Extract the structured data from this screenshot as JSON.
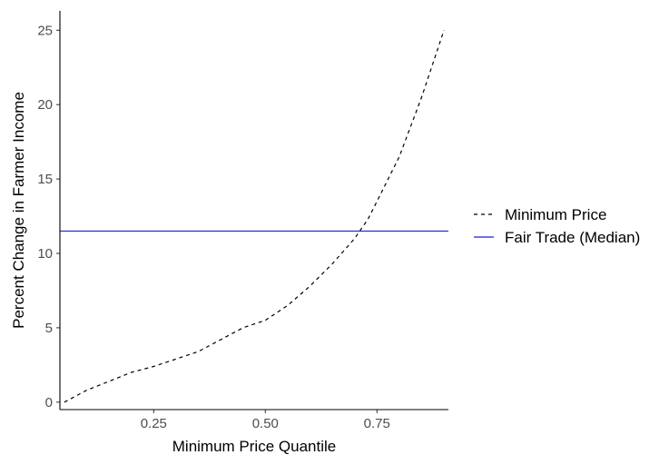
{
  "chart_data": {
    "type": "line",
    "title": "",
    "xlabel": "Minimum Price Quantile",
    "ylabel": "Percent Change in Farmer Income",
    "xlim": [
      0.04,
      0.91
    ],
    "ylim": [
      -0.5,
      26.3
    ],
    "x_ticks": [
      {
        "value": 0.25,
        "label": "0.25"
      },
      {
        "value": 0.5,
        "label": "0.50"
      },
      {
        "value": 0.75,
        "label": "0.75"
      }
    ],
    "y_ticks": [
      {
        "value": 0,
        "label": "0"
      },
      {
        "value": 5,
        "label": "5"
      },
      {
        "value": 10,
        "label": "10"
      },
      {
        "value": 15,
        "label": "15"
      },
      {
        "value": 20,
        "label": "20"
      },
      {
        "value": 25,
        "label": "25"
      }
    ],
    "grid": false,
    "legend_position": "right",
    "series": [
      {
        "name": "Minimum Price",
        "style": "dashed",
        "color": "#000000",
        "x": [
          0.05,
          0.1,
          0.15,
          0.2,
          0.25,
          0.3,
          0.35,
          0.4,
          0.45,
          0.5,
          0.55,
          0.6,
          0.65,
          0.7,
          0.73,
          0.75,
          0.8,
          0.85,
          0.9
        ],
        "y": [
          0.0,
          0.8,
          1.4,
          2.0,
          2.4,
          2.9,
          3.4,
          4.2,
          5.0,
          5.5,
          6.5,
          7.8,
          9.3,
          11.0,
          12.3,
          13.5,
          16.5,
          20.5,
          25.0
        ]
      },
      {
        "name": "Fair Trade (Median)",
        "style": "solid",
        "color": "#1f1fdc",
        "y_constant": 11.5
      }
    ]
  }
}
